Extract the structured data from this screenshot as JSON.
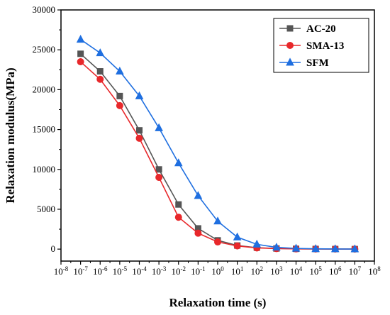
{
  "chart_data": {
    "type": "line",
    "title": "",
    "xlabel": "Relaxation time (s)",
    "ylabel": "Relaxation modulus(MPa)",
    "xscale": "log",
    "xlim": [
      1e-08,
      100000000.0
    ],
    "ylim": [
      -1500,
      30000
    ],
    "x_tick_labels": [
      {
        "base": "10",
        "exp": "-8"
      },
      {
        "base": "10",
        "exp": "-7"
      },
      {
        "base": "10",
        "exp": "-6"
      },
      {
        "base": "10",
        "exp": "-5"
      },
      {
        "base": "10",
        "exp": "-4"
      },
      {
        "base": "10",
        "exp": "-3"
      },
      {
        "base": "10",
        "exp": "-2"
      },
      {
        "base": "10",
        "exp": "-1"
      },
      {
        "base": "10",
        "exp": "0"
      },
      {
        "base": "10",
        "exp": "1"
      },
      {
        "base": "10",
        "exp": "2"
      },
      {
        "base": "10",
        "exp": "3"
      },
      {
        "base": "10",
        "exp": "4"
      },
      {
        "base": "10",
        "exp": "5"
      },
      {
        "base": "10",
        "exp": "6"
      },
      {
        "base": "10",
        "exp": "7"
      },
      {
        "base": "10",
        "exp": "8"
      }
    ],
    "y_ticks": [
      0,
      5000,
      10000,
      15000,
      20000,
      25000,
      30000
    ],
    "y_tick_labels": [
      "0",
      "5000",
      "10000",
      "15000",
      "20000",
      "25000",
      "30000"
    ],
    "grid": false,
    "legend_position": "top-right",
    "x": [
      1e-07,
      1e-06,
      1e-05,
      0.0001,
      0.001,
      0.01,
      0.1,
      1,
      10,
      100,
      1000,
      10000,
      100000,
      1000000,
      10000000
    ],
    "series": [
      {
        "name": "AC-20",
        "color": "#555555",
        "marker": "square",
        "values": [
          24500,
          22300,
          19200,
          14900,
          10000,
          5600,
          2600,
          1100,
          450,
          180,
          80,
          40,
          20,
          10,
          5
        ]
      },
      {
        "name": "SMA-13",
        "color": "#e8282b",
        "marker": "circle",
        "values": [
          23500,
          21300,
          18000,
          13900,
          9000,
          4000,
          2000,
          900,
          400,
          150,
          70,
          30,
          15,
          8,
          5
        ]
      },
      {
        "name": "SFM",
        "color": "#1f6fe0",
        "marker": "triangle",
        "values": [
          26300,
          24600,
          22300,
          19200,
          15200,
          10800,
          6700,
          3500,
          1500,
          600,
          220,
          90,
          40,
          20,
          10
        ]
      }
    ]
  }
}
